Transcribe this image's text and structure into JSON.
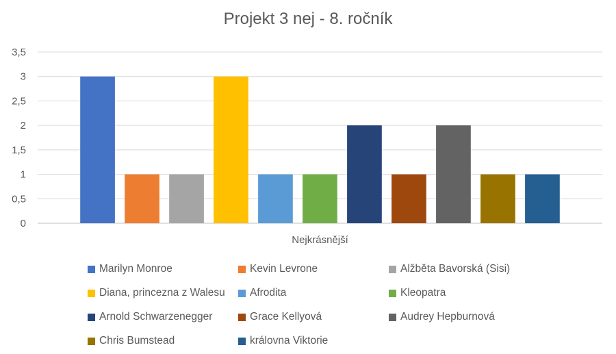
{
  "chart_data": {
    "type": "bar",
    "title": "Projekt 3 nej - 8. ročník",
    "categories": [
      "Nejkrásnější"
    ],
    "series": [
      {
        "name": "Marilyn Monroe",
        "values": [
          3
        ],
        "color": "#4472C4"
      },
      {
        "name": "Kevin Levrone",
        "values": [
          1
        ],
        "color": "#ED7D31"
      },
      {
        "name": "Alžběta Bavorská (Sisi)",
        "values": [
          1
        ],
        "color": "#A5A5A5"
      },
      {
        "name": "Diana, princezna z Walesu",
        "values": [
          3
        ],
        "color": "#FFC000"
      },
      {
        "name": "Afrodita",
        "values": [
          1
        ],
        "color": "#5B9BD5"
      },
      {
        "name": "Kleopatra",
        "values": [
          1
        ],
        "color": "#70AD47"
      },
      {
        "name": "Arnold Schwarzenegger",
        "values": [
          2
        ],
        "color": "#264478"
      },
      {
        "name": "Grace Kellyová",
        "values": [
          1
        ],
        "color": "#9E480E"
      },
      {
        "name": "Audrey Hepburnová",
        "values": [
          2
        ],
        "color": "#636363"
      },
      {
        "name": "Chris Bumstead",
        "values": [
          1
        ],
        "color": "#997300"
      },
      {
        "name": "královna Viktorie",
        "values": [
          1
        ],
        "color": "#255E91"
      }
    ],
    "yticks": [
      "0",
      "0,5",
      "1",
      "1,5",
      "2",
      "2,5",
      "3",
      "3,5"
    ],
    "ylim": [
      0,
      3.5
    ],
    "grid": true,
    "legend_position": "bottom"
  }
}
